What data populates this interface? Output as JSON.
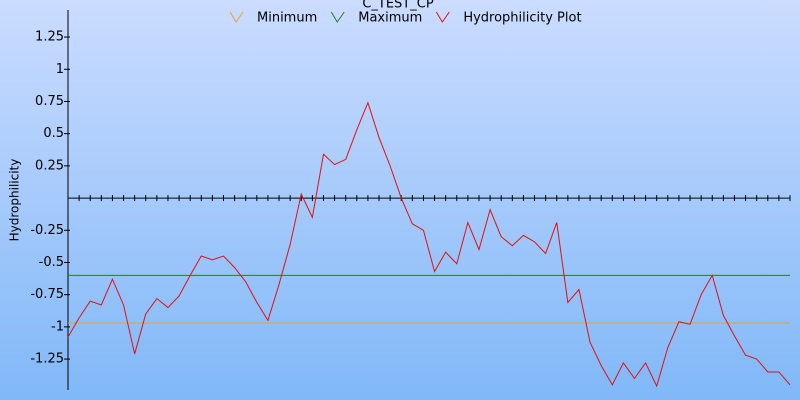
{
  "chart_data": {
    "type": "line",
    "title": "C_TEST_CP",
    "y_label": "Hydrophilicity",
    "ylim": [
      -1.49,
      1.46
    ],
    "yticks": [
      1.25,
      1,
      0.75,
      0.5,
      0.25,
      -0.25,
      -0.5,
      -0.75,
      -1,
      -1.25
    ],
    "series": [
      {
        "name": "Minimum",
        "color": "#e8a030",
        "value": -0.97
      },
      {
        "name": "Maximum",
        "color": "#208020",
        "value": -0.6
      },
      {
        "name": "Hydrophilicity Plot",
        "color": "#e01010",
        "values": [
          -1.08,
          -0.93,
          -0.8,
          -0.83,
          -0.63,
          -0.83,
          -1.21,
          -0.9,
          -0.78,
          -0.85,
          -0.76,
          -0.6,
          -0.45,
          -0.48,
          -0.45,
          -0.54,
          -0.65,
          -0.81,
          -0.95,
          -0.67,
          -0.36,
          0.03,
          -0.15,
          0.34,
          0.26,
          0.3,
          0.53,
          0.74,
          0.47,
          0.25,
          0.0,
          -0.2,
          -0.25,
          -0.57,
          -0.42,
          -0.51,
          -0.19,
          -0.4,
          -0.09,
          -0.3,
          -0.37,
          -0.29,
          -0.34,
          -0.43,
          -0.19,
          -0.81,
          -0.71,
          -1.12,
          -1.3,
          -1.45,
          -1.28,
          -1.4,
          -1.28,
          -1.46,
          -1.16,
          -0.96,
          -0.98,
          -0.75,
          -0.6,
          -0.91,
          -1.07,
          -1.22,
          -1.25,
          -1.35,
          -1.35,
          -1.45
        ]
      }
    ]
  }
}
